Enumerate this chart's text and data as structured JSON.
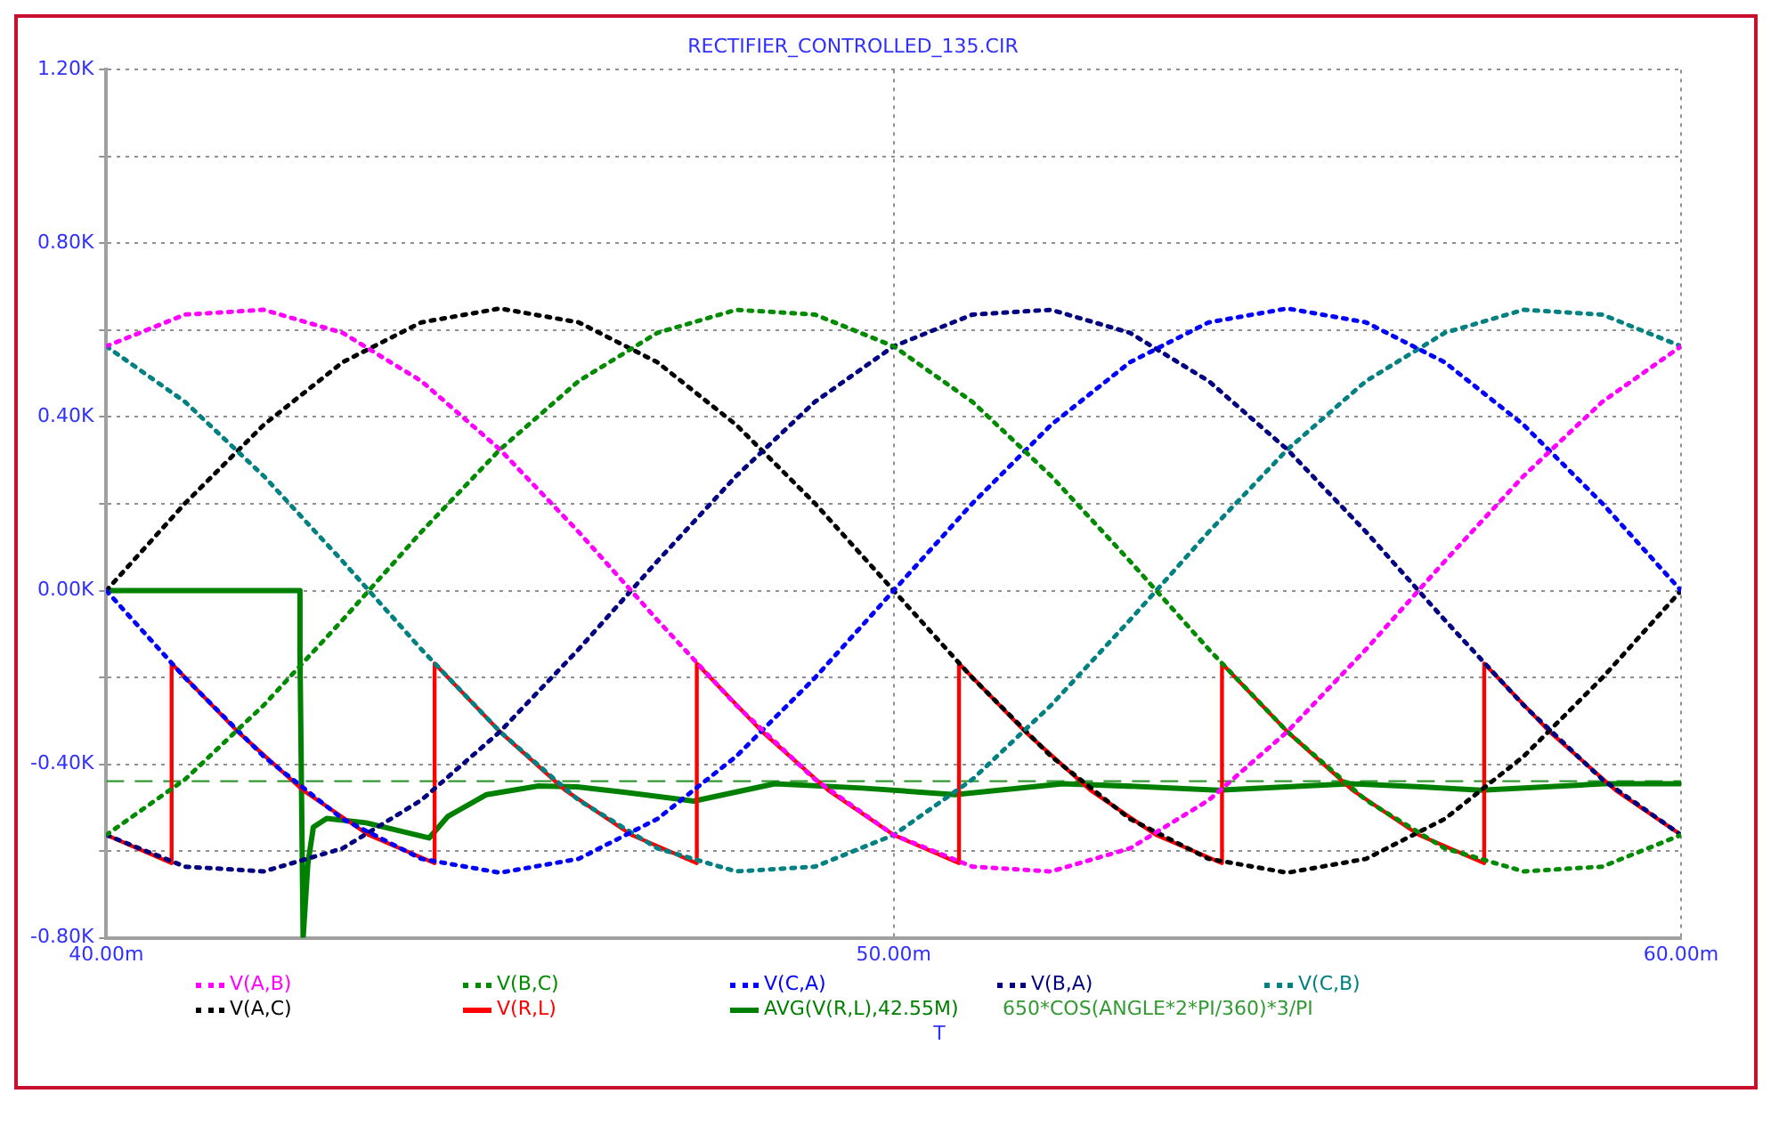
{
  "chart_data": {
    "type": "line",
    "title": "RECTIFIER_CONTROLLED_135.CIR",
    "xlabel": "T",
    "x": [
      40,
      41,
      42,
      43,
      44,
      45,
      46,
      47,
      48,
      49,
      50,
      51,
      52,
      53,
      54,
      55,
      56,
      57,
      58,
      59,
      60
    ],
    "xlim": [
      40,
      60
    ],
    "xticks": [
      {
        "value": 40,
        "label": "40.00m"
      },
      {
        "value": 50,
        "label": "50.00m"
      },
      {
        "value": 60,
        "label": "60.00m"
      }
    ],
    "ylim": [
      -800,
      1200
    ],
    "yticks": [
      {
        "value": 1200,
        "label": "1.20K"
      },
      {
        "value": 1000,
        "label": null
      },
      {
        "value": 800,
        "label": "0.80K"
      },
      {
        "value": 600,
        "label": null
      },
      {
        "value": 400,
        "label": "0.40K"
      },
      {
        "value": 200,
        "label": null
      },
      {
        "value": 0,
        "label": "0.00K"
      },
      {
        "value": -200,
        "label": null
      },
      {
        "value": -400,
        "label": "-0.40K"
      },
      {
        "value": -600,
        "label": null
      },
      {
        "value": -800,
        "label": "-0.80K"
      }
    ],
    "grid": true,
    "legend": "bottom",
    "marker": "none",
    "series": [
      {
        "name": "V(A,B)",
        "color": "#ff00ff",
        "line_style": "dotted",
        "values": [
          563,
          636,
          647,
          594,
          483,
          325,
          135,
          -68,
          -264,
          -435,
          -563,
          -636,
          -647,
          -594,
          -483,
          -325,
          -135,
          68,
          264,
          435,
          563
        ]
      },
      {
        "name": "V(B,C)",
        "color": "#008a00",
        "line_style": "dotted",
        "values": [
          -563,
          -435,
          -264,
          -68,
          135,
          325,
          483,
          594,
          647,
          636,
          563,
          435,
          264,
          68,
          -135,
          -325,
          -483,
          -594,
          -647,
          -636,
          -563
        ]
      },
      {
        "name": "V(C,A)",
        "color": "#0000ff",
        "line_style": "dotted",
        "values": [
          0,
          -201,
          -382,
          -526,
          -618,
          -650,
          -618,
          -526,
          -382,
          -201,
          0,
          201,
          382,
          526,
          618,
          650,
          618,
          526,
          382,
          201,
          0
        ]
      },
      {
        "name": "V(B,A)",
        "color": "#000080",
        "line_style": "dotted",
        "values": [
          -563,
          -636,
          -647,
          -594,
          -483,
          -325,
          -135,
          68,
          264,
          435,
          563,
          636,
          647,
          594,
          483,
          325,
          135,
          -68,
          -264,
          -435,
          -563
        ]
      },
      {
        "name": "V(C,B)",
        "color": "#008080",
        "line_style": "dotted",
        "values": [
          563,
          435,
          264,
          68,
          -135,
          -325,
          -483,
          -594,
          -647,
          -636,
          -563,
          -435,
          -264,
          -68,
          135,
          325,
          483,
          594,
          647,
          636,
          563
        ]
      },
      {
        "name": "V(A,C)",
        "color": "#000000",
        "line_style": "dotted",
        "values": [
          0,
          201,
          382,
          526,
          618,
          650,
          618,
          526,
          382,
          201,
          0,
          -201,
          -382,
          -526,
          -618,
          -650,
          -618,
          -526,
          -382,
          -201,
          0
        ]
      },
      {
        "name": "V(R,L)",
        "color": "#ff0000",
        "line_style": "solid",
        "x": [
          40,
          40.83,
          40.83,
          41.67,
          42.5,
          43.33,
          44.17,
          44.17,
          45,
          45.83,
          46.67,
          47.5,
          47.5,
          48.33,
          49.17,
          50,
          50.83,
          50.83,
          51.67,
          52.5,
          53.33,
          54.17,
          54.17,
          55,
          55.83,
          56.67,
          57.5,
          57.5,
          58.33,
          59.17,
          60
        ],
        "values": [
          -563,
          -628,
          -168,
          -325,
          -460,
          -563,
          -628,
          -168,
          -325,
          -460,
          -563,
          -628,
          -168,
          -325,
          -460,
          -563,
          -628,
          -168,
          -325,
          -460,
          -563,
          -628,
          -168,
          -325,
          -460,
          -563,
          -628,
          -168,
          -325,
          -460,
          -563
        ]
      },
      {
        "name": "AVG(V(R,L),42.55M)",
        "color": "#008000",
        "line_style": "solid",
        "x": [
          40,
          42.46,
          42.46,
          42.5,
          42.56,
          42.63,
          42.8,
          43.3,
          44.1,
          44.34,
          44.83,
          45.49,
          45.98,
          46.6,
          47.46,
          48.49,
          49.6,
          50.78,
          52.15,
          53.2,
          54.12,
          55.8,
          56.7,
          57.46,
          59.02,
          60
        ],
        "values": [
          0,
          0,
          -140,
          -800,
          -630,
          -545,
          -525,
          -535,
          -570,
          -520,
          -470,
          -450,
          -452,
          -465,
          -485,
          -445,
          -455,
          -470,
          -445,
          -452,
          -460,
          -445,
          -452,
          -460,
          -445,
          -445
        ]
      },
      {
        "name": "650*COS(ANGLE*2*PI/360)*3/PI",
        "color": "#339933",
        "line_style": "dashed",
        "x": [
          40,
          60
        ],
        "values": [
          -439,
          -439
        ]
      }
    ]
  }
}
